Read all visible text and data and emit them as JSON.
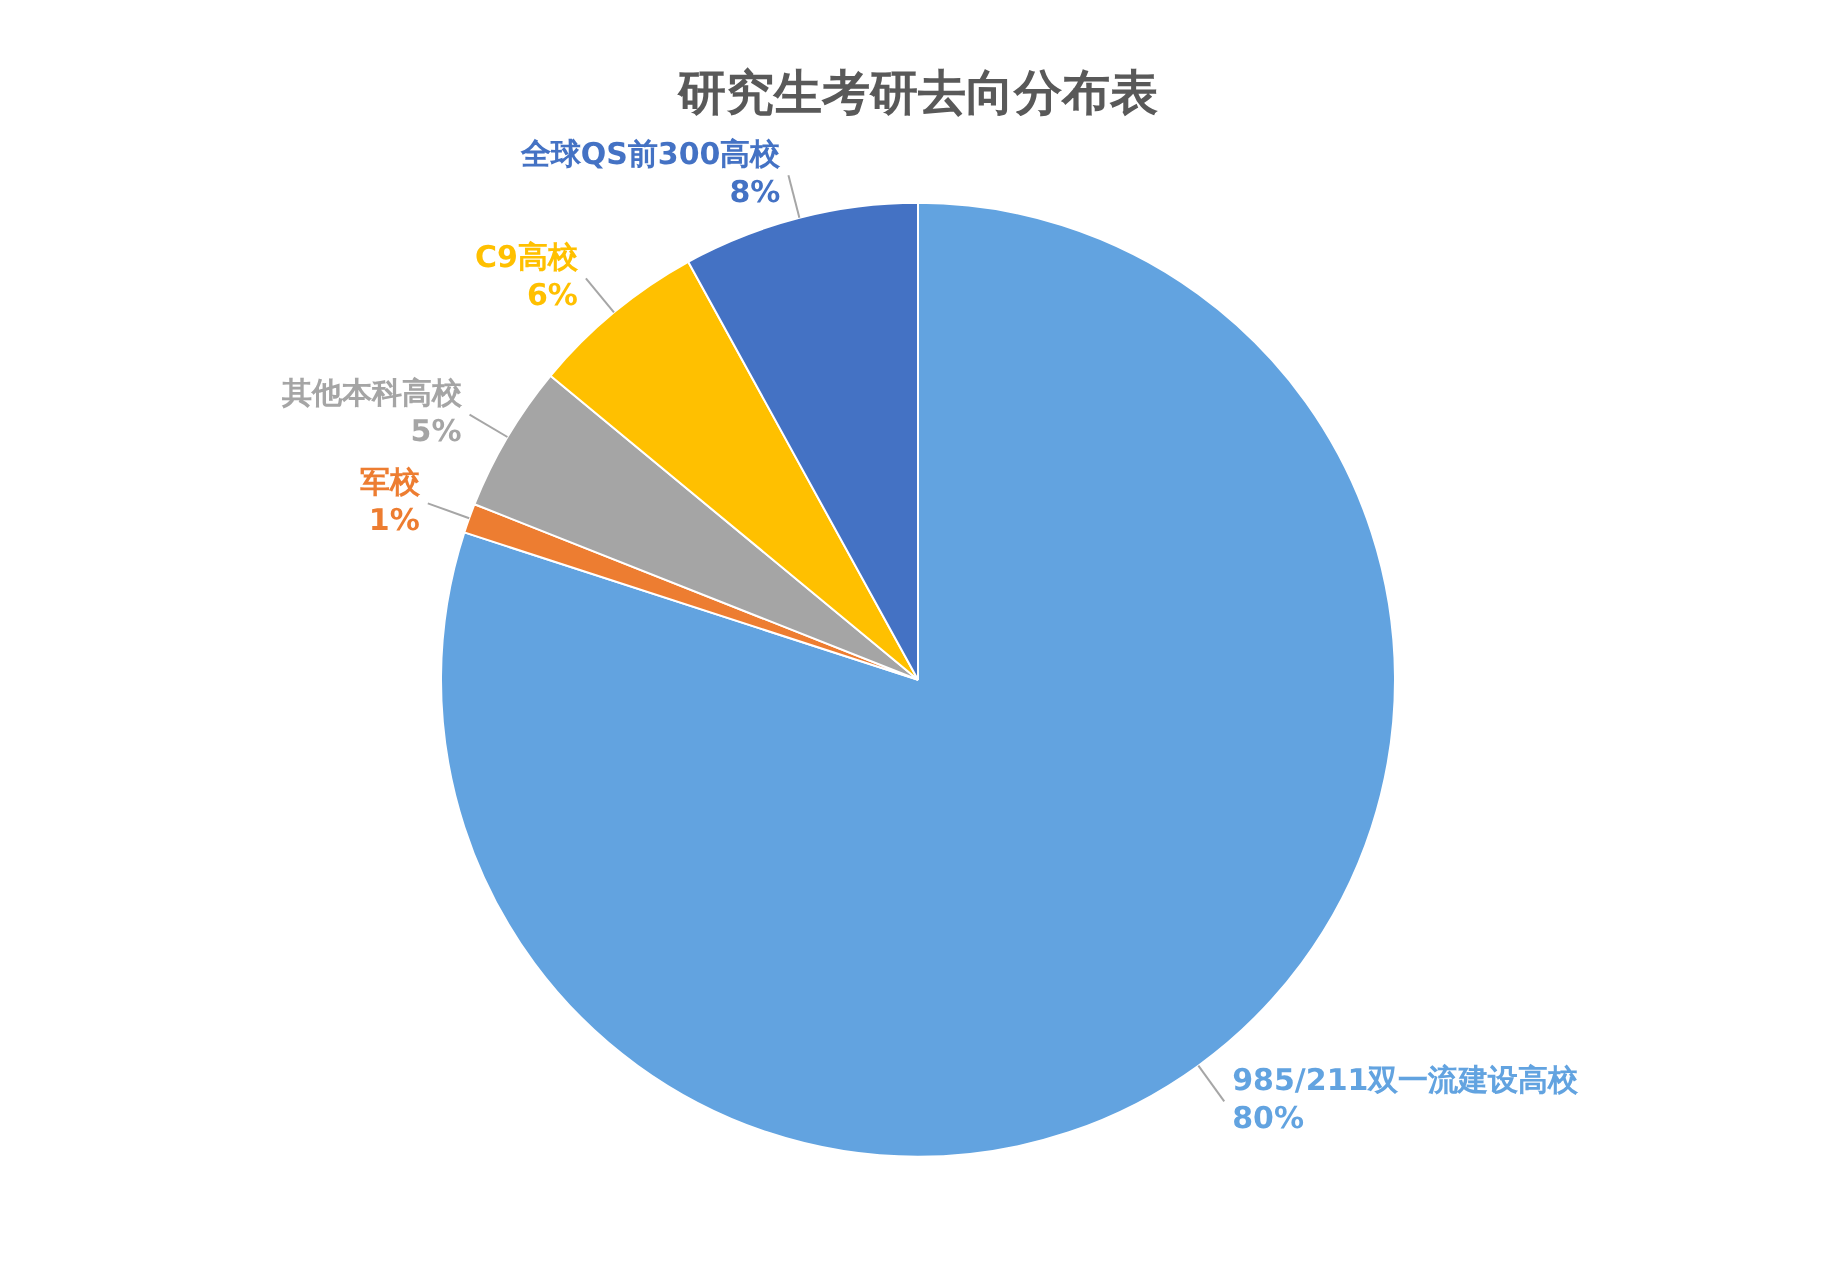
{
  "chart_data": {
    "type": "pie",
    "title": "研究生考研去向分布表",
    "categories": [
      "985/211双一流建设高校",
      "军校",
      "其他本科高校",
      "C9高校",
      "全球QS前300高校"
    ],
    "values": [
      80,
      1,
      5,
      6,
      8
    ],
    "colors": [
      "#62a3e0",
      "#ed7d31",
      "#a5a5a5",
      "#ffc000",
      "#4472c4"
    ],
    "value_labels": [
      "80%",
      "1%",
      "5%",
      "6%",
      "8%"
    ],
    "legend": false
  }
}
